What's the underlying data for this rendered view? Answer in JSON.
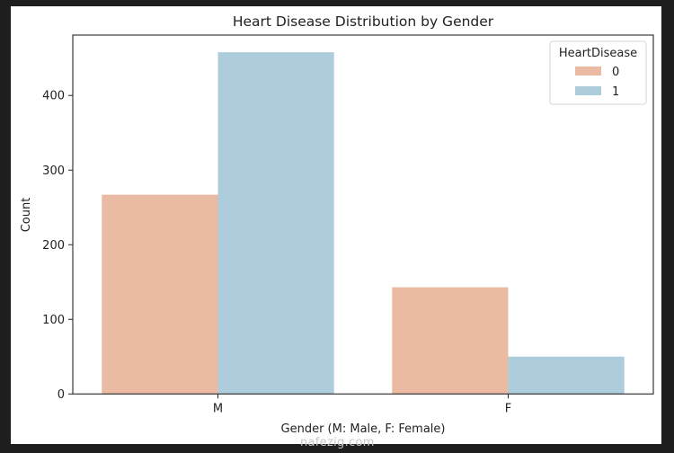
{
  "chart_data": {
    "type": "bar",
    "title": "Heart Disease Distribution by Gender",
    "xlabel": "Gender (M: Male, F: Female)",
    "ylabel": "Count",
    "categories": [
      "M",
      "F"
    ],
    "series": [
      {
        "name": "0",
        "values": [
          267,
          143
        ],
        "color": "#eabaa2"
      },
      {
        "name": "1",
        "values": [
          458,
          50
        ],
        "color": "#aecddc"
      }
    ],
    "ylim": [
      0,
      481
    ],
    "yticks": [
      0,
      100,
      200,
      300,
      400
    ],
    "grid": false,
    "legend": {
      "title": "HeartDisease",
      "placement": "top-right"
    }
  },
  "watermark": "nafezig.com",
  "colors": {
    "background": "#1e1e1e",
    "figure": "#ffffff",
    "text": "#222222",
    "axis": "#262626"
  }
}
